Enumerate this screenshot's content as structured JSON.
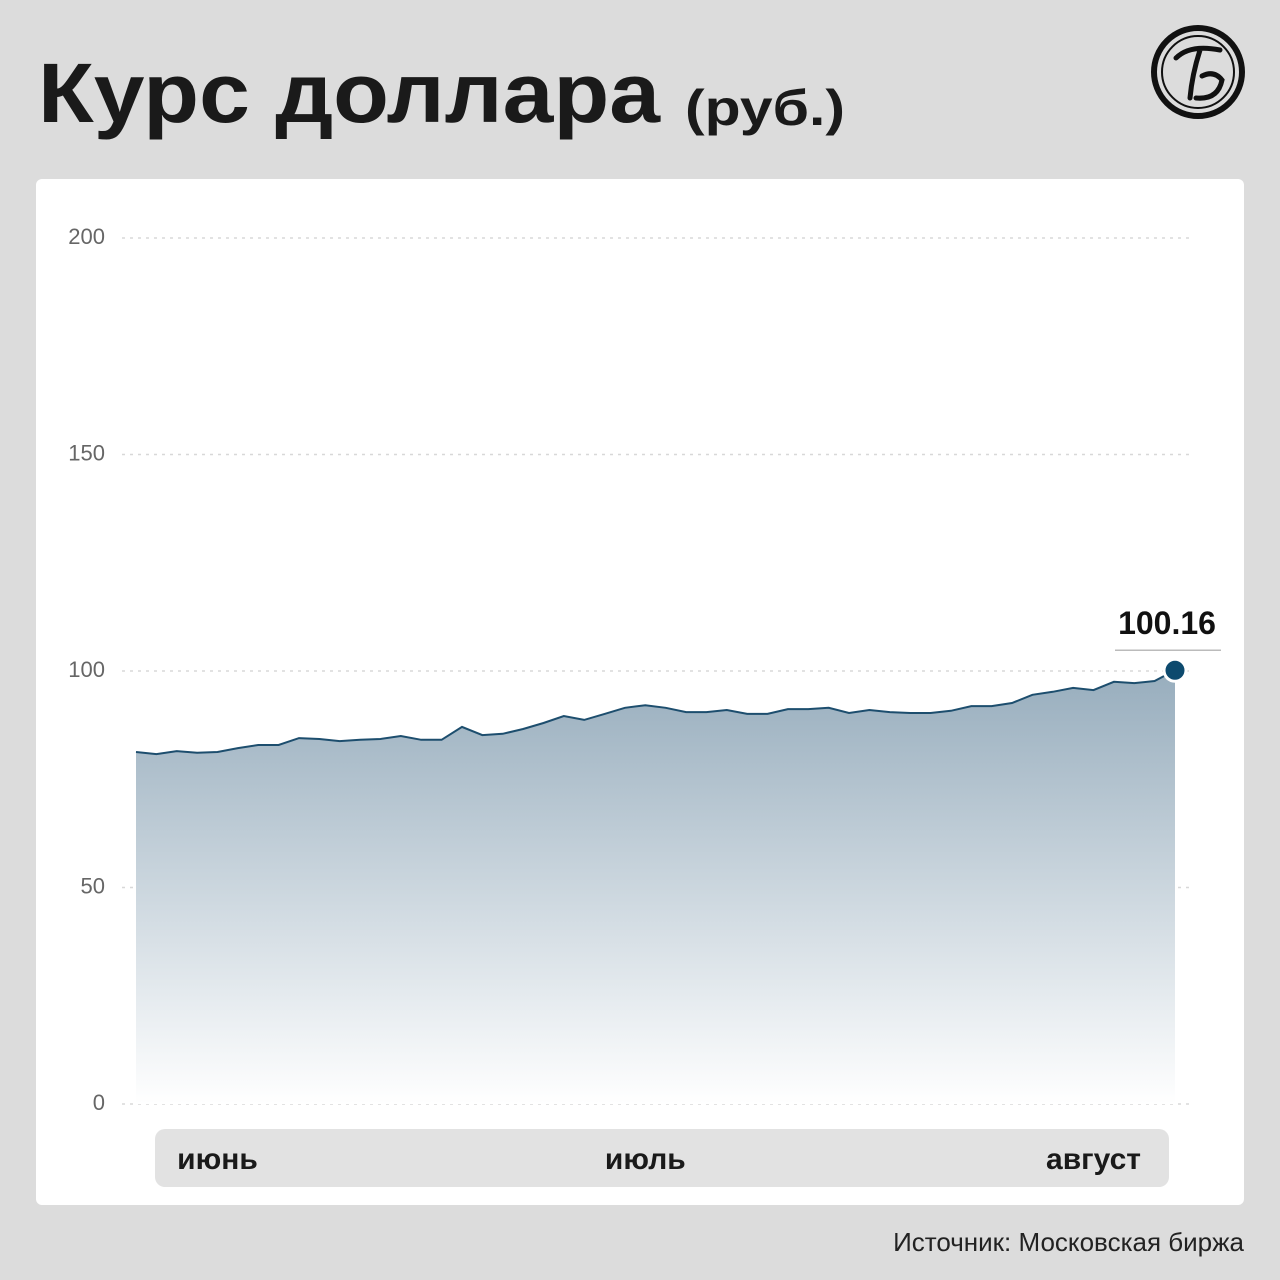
{
  "chart_data": {
    "type": "area",
    "title": "Курс доллара",
    "subtitle": "(руб.)",
    "source": "Источник: Московская биржа",
    "categories": [
      null,
      null,
      null,
      null,
      "июнь",
      null,
      null,
      null,
      null,
      null,
      null,
      null,
      null,
      null,
      null,
      null,
      null,
      null,
      null,
      null,
      null,
      null,
      null,
      null,
      null,
      "июль",
      null,
      null,
      null,
      null,
      null,
      null,
      null,
      null,
      null,
      null,
      null,
      null,
      null,
      null,
      null,
      null,
      null,
      null,
      null,
      null,
      null,
      "август",
      null,
      null,
      null,
      null
    ],
    "values": [
      81.3,
      80.8,
      81.5,
      81.1,
      81.3,
      82.2,
      82.9,
      82.9,
      84.5,
      84.3,
      83.8,
      84.1,
      84.3,
      85.0,
      84.1,
      84.1,
      87.1,
      85.2,
      85.5,
      86.6,
      88.0,
      89.6,
      88.7,
      90.1,
      91.5,
      92.1,
      91.5,
      90.5,
      90.5,
      91.0,
      90.1,
      90.1,
      91.2,
      91.2,
      91.5,
      90.3,
      91.0,
      90.5,
      90.3,
      90.3,
      90.8,
      91.9,
      91.9,
      92.6,
      94.5,
      95.2,
      96.1,
      95.6,
      97.5,
      97.2,
      97.7,
      100.16
    ],
    "color": "#1d4e6e",
    "ylim": [
      0,
      200
    ],
    "yticks": [
      0,
      50,
      100,
      150,
      200
    ],
    "grid": true
  }
}
